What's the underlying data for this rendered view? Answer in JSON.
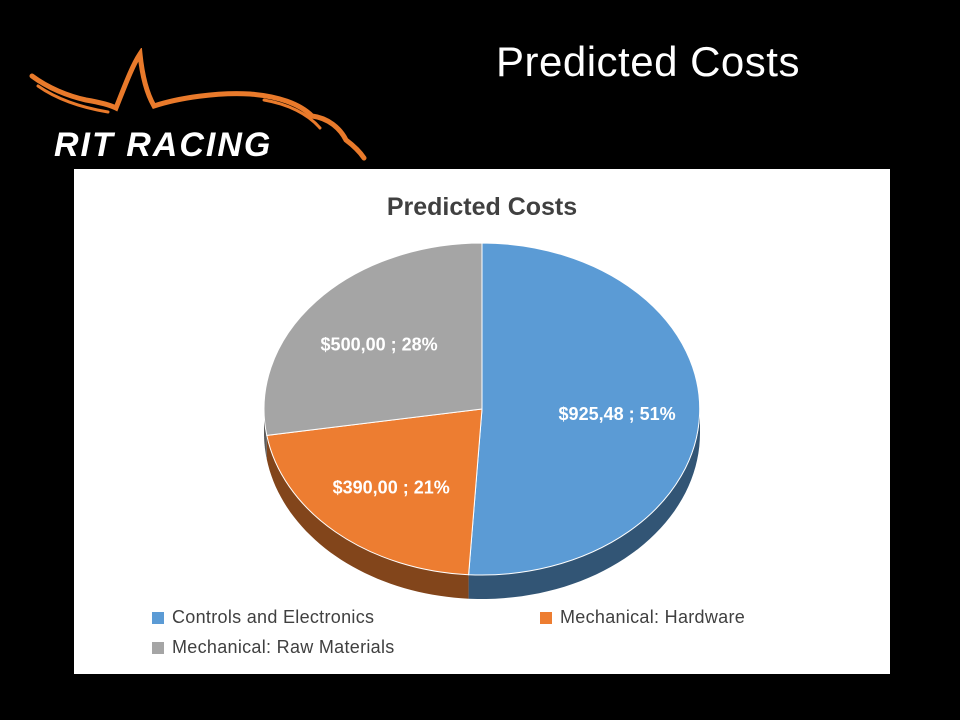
{
  "slide": {
    "title": "Predicted Costs",
    "logo_text": "RIT RACING"
  },
  "chart_data": {
    "type": "pie",
    "style": "3d",
    "title": "Predicted Costs",
    "legend_position": "bottom",
    "slices": [
      {
        "name": "Controls and Electronics",
        "value": 925.48,
        "percent": 51,
        "label": "$925,48 ; 51%",
        "color": "#5b9bd5"
      },
      {
        "name": "Mechanical: Hardware",
        "value": 390.0,
        "percent": 21,
        "label": "$390,00 ; 21%",
        "color": "#ed7d31"
      },
      {
        "name": "Mechanical: Raw Materials",
        "value": 500.0,
        "percent": 28,
        "label": "$500,00 ; 28%",
        "color": "#a5a5a5"
      }
    ]
  },
  "colors": {
    "background": "#000000",
    "accent_orange": "#e97a2b",
    "text_dark": "#404040"
  }
}
